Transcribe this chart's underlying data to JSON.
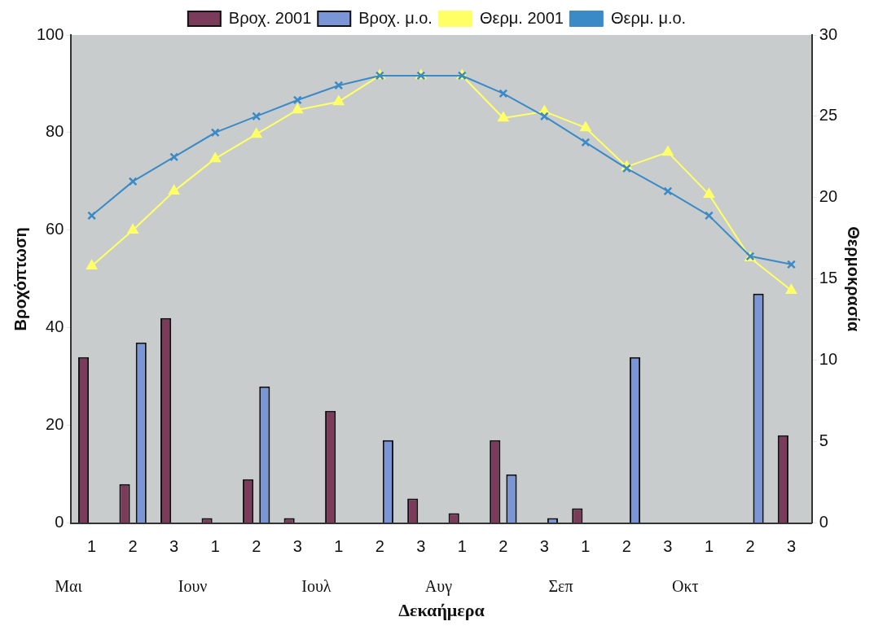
{
  "chart_data": {
    "type": "bar",
    "categories": [
      "1",
      "2",
      "3",
      "1",
      "2",
      "3",
      "1",
      "2",
      "3",
      "1",
      "2",
      "3",
      "1",
      "2",
      "3",
      "1",
      "2",
      "3"
    ],
    "xlabel": "Δεκαήμερα",
    "ylabel": "Βροχόπτωση",
    "y2label": "Θερμοκρασία",
    "ylim": [
      0,
      100
    ],
    "yticks": [
      0,
      20,
      40,
      60,
      80,
      100
    ],
    "y2lim": [
      0,
      30
    ],
    "y2ticks": [
      0,
      5,
      10,
      15,
      20,
      25,
      30
    ],
    "legend": "top",
    "grid": false,
    "annotations": [
      "Μαι",
      "Ιουν",
      "Ιουλ",
      "Αυγ",
      "Σεπ",
      "Οκτ"
    ],
    "series": [
      {
        "name": "Βροχ. 2001",
        "color": "#7b3b5a",
        "values": [
          34,
          8,
          42,
          1,
          9,
          1,
          23,
          0,
          5,
          2,
          17,
          0,
          3,
          0,
          0,
          0,
          0,
          18
        ]
      },
      {
        "name": "Βροχ. μ.ο.",
        "color": "#7b96d6",
        "values": [
          0,
          37,
          0,
          0,
          28,
          0,
          0,
          17,
          0,
          0,
          10,
          1,
          0,
          34,
          0,
          0,
          47,
          0
        ]
      },
      {
        "name": "Θερμ. 2001",
        "type": "line",
        "axis": "y2",
        "marker": "triangle",
        "color": "#ffff66",
        "values": [
          15.8,
          18.0,
          20.4,
          22.4,
          23.9,
          25.4,
          25.9,
          27.5,
          27.5,
          27.5,
          24.9,
          25.3,
          24.3,
          21.9,
          22.8,
          20.2,
          16.3,
          14.3
        ]
      },
      {
        "name": "Θερμ. μ.ο.",
        "type": "line",
        "axis": "y2",
        "marker": "cross",
        "color": "#3a8ac8",
        "values": [
          18.9,
          21.0,
          22.5,
          24.0,
          25.0,
          26.0,
          26.9,
          27.5,
          27.5,
          27.5,
          26.4,
          25.0,
          23.4,
          21.8,
          20.4,
          18.9,
          16.4,
          15.9
        ]
      }
    ]
  }
}
